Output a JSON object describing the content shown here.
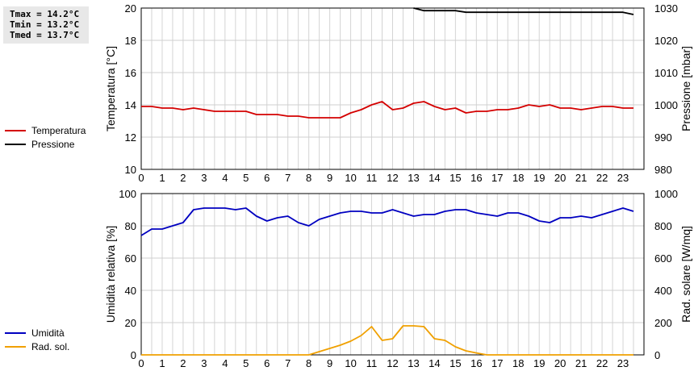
{
  "stats": {
    "tmax": "Tmax = 14.2°C",
    "tmin": "Tmin = 13.2°C",
    "tmed": "Tmed = 13.7°C"
  },
  "legend_top": [
    {
      "label": "Temperatura",
      "color": "#d40000"
    },
    {
      "label": "Pressione",
      "color": "#000000"
    }
  ],
  "legend_bottom": [
    {
      "label": "Umidità",
      "color": "#0000c0"
    },
    {
      "label": "Rad. sol.",
      "color": "#f0a000"
    }
  ],
  "chart_data": [
    {
      "type": "line",
      "xlabel": "",
      "x_ticks": [
        "0",
        "1",
        "2",
        "3",
        "4",
        "5",
        "6",
        "7",
        "8",
        "9",
        "10",
        "11",
        "12",
        "13",
        "14",
        "15",
        "16",
        "17",
        "18",
        "19",
        "20",
        "21",
        "22",
        "23"
      ],
      "xlim": [
        0,
        24
      ],
      "ylabel": "Temperatura [°C]",
      "ylim": [
        10,
        20
      ],
      "y_ticks": [
        "10",
        "12",
        "14",
        "16",
        "18",
        "20"
      ],
      "y2label": "Pressione [mbar]",
      "y2lim": [
        980,
        1030
      ],
      "y2_ticks": [
        "980",
        "990",
        "1000",
        "1010",
        "1020",
        "1030"
      ],
      "grid": true,
      "series": [
        {
          "name": "Temperatura",
          "axis": "left",
          "color": "#d40000",
          "x": [
            0,
            0.5,
            1,
            1.5,
            2,
            2.5,
            3,
            3.5,
            4,
            4.5,
            5,
            5.5,
            6,
            6.5,
            7,
            7.5,
            8,
            8.5,
            9,
            9.5,
            10,
            10.5,
            11,
            11.5,
            12,
            12.5,
            13,
            13.5,
            14,
            14.5,
            15,
            15.5,
            16,
            16.5,
            17,
            17.5,
            18,
            18.5,
            19,
            19.5,
            20,
            20.5,
            21,
            21.5,
            22,
            22.5,
            23,
            23.5
          ],
          "y": [
            13.9,
            13.9,
            13.8,
            13.8,
            13.7,
            13.8,
            13.7,
            13.6,
            13.6,
            13.6,
            13.6,
            13.4,
            13.4,
            13.4,
            13.3,
            13.3,
            13.2,
            13.2,
            13.2,
            13.2,
            13.5,
            13.7,
            14.0,
            14.2,
            13.7,
            13.8,
            14.1,
            14.2,
            13.9,
            13.7,
            13.8,
            13.5,
            13.6,
            13.6,
            13.7,
            13.7,
            13.8,
            14.0,
            13.9,
            14.0,
            13.8,
            13.8,
            13.7,
            13.8,
            13.9,
            13.9,
            13.8,
            13.8
          ]
        },
        {
          "name": "Pressione",
          "axis": "right",
          "color": "#000000",
          "x": [
            13,
            13.5,
            14,
            14.5,
            15,
            15.5,
            16,
            16.5,
            17,
            17.5,
            18,
            18.5,
            19,
            19.5,
            20,
            20.5,
            21,
            21.5,
            22,
            22.5,
            23,
            23.5
          ],
          "y": [
            1030,
            1029.2,
            1029.2,
            1029.2,
            1029.2,
            1028.7,
            1028.7,
            1028.7,
            1028.7,
            1028.7,
            1028.7,
            1028.7,
            1028.7,
            1028.7,
            1028.7,
            1028.7,
            1028.7,
            1028.7,
            1028.7,
            1028.7,
            1028.7,
            1028.0
          ]
        }
      ]
    },
    {
      "type": "line",
      "xlabel": "",
      "x_ticks": [
        "0",
        "1",
        "2",
        "3",
        "4",
        "5",
        "6",
        "7",
        "8",
        "9",
        "10",
        "11",
        "12",
        "13",
        "14",
        "15",
        "16",
        "17",
        "18",
        "19",
        "20",
        "21",
        "22",
        "23"
      ],
      "xlim": [
        0,
        24
      ],
      "ylabel": "Umidità relativa [%]",
      "ylim": [
        0,
        100
      ],
      "y_ticks": [
        "0",
        "20",
        "40",
        "60",
        "80",
        "100"
      ],
      "y2label": "Rad. solare [W/mq]",
      "y2lim": [
        0,
        1000
      ],
      "y2_ticks": [
        "0",
        "200",
        "400",
        "600",
        "800",
        "1000"
      ],
      "grid": true,
      "series": [
        {
          "name": "Umidità",
          "axis": "left",
          "color": "#0000c0",
          "x": [
            0,
            0.5,
            1,
            1.5,
            2,
            2.5,
            3,
            3.5,
            4,
            4.5,
            5,
            5.5,
            6,
            6.5,
            7,
            7.5,
            8,
            8.5,
            9,
            9.5,
            10,
            10.5,
            11,
            11.5,
            12,
            12.5,
            13,
            13.5,
            14,
            14.5,
            15,
            15.5,
            16,
            16.5,
            17,
            17.5,
            18,
            18.5,
            19,
            19.5,
            20,
            20.5,
            21,
            21.5,
            22,
            22.5,
            23,
            23.5
          ],
          "y": [
            74,
            78,
            78,
            80,
            82,
            90,
            91,
            91,
            91,
            90,
            91,
            86,
            83,
            85,
            86,
            82,
            80,
            84,
            86,
            88,
            89,
            89,
            88,
            88,
            90,
            88,
            86,
            87,
            87,
            89,
            90,
            90,
            88,
            87,
            86,
            88,
            88,
            86,
            83,
            82,
            85,
            85,
            86,
            85,
            87,
            89,
            91,
            89
          ]
        },
        {
          "name": "Rad. sol.",
          "axis": "right",
          "color": "#f0a000",
          "x": [
            0,
            1,
            2,
            3,
            4,
            5,
            6,
            7,
            8,
            8.5,
            9,
            9.5,
            10,
            10.5,
            11,
            11.5,
            12,
            12.5,
            13,
            13.5,
            14,
            14.5,
            15,
            15.5,
            16,
            16.5,
            17,
            18,
            19,
            20,
            21,
            22,
            23,
            23.5
          ],
          "y": [
            0,
            0,
            0,
            0,
            0,
            0,
            0,
            0,
            0,
            20,
            40,
            60,
            85,
            120,
            175,
            90,
            100,
            180,
            180,
            175,
            100,
            90,
            50,
            25,
            12,
            0,
            0,
            0,
            0,
            0,
            0,
            0,
            0,
            0
          ]
        }
      ]
    }
  ]
}
